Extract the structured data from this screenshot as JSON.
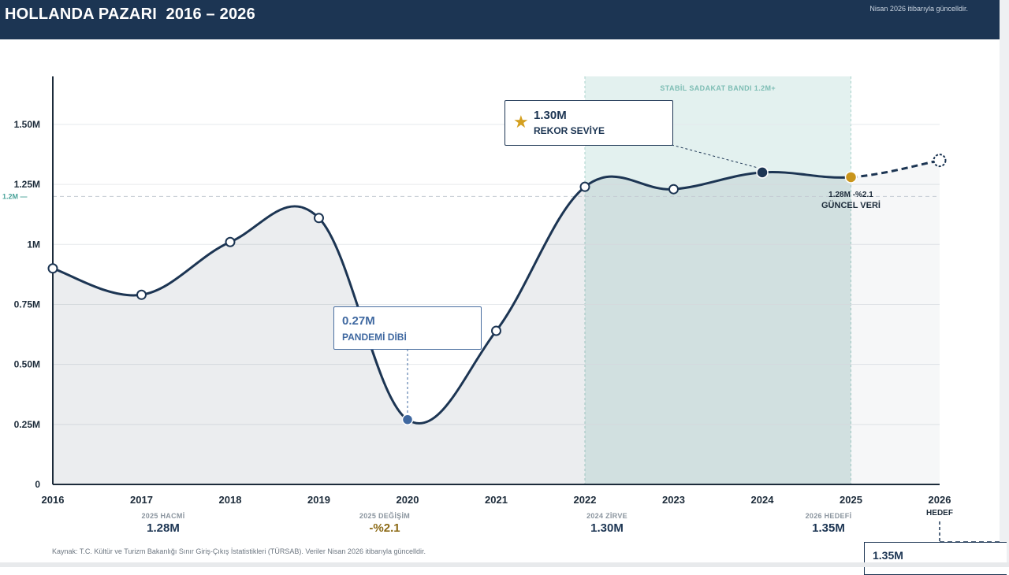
{
  "header": {
    "title": "HOLLANDA PAZARI  2016 – 2026",
    "note": "Nisan 2026 itibarıyla güncelldir."
  },
  "chart_data": {
    "type": "line",
    "title": "HOLLANDA PAZARI  2016 – 2026",
    "x": [
      "2016",
      "2017",
      "2018",
      "2019",
      "2020",
      "2021",
      "2022",
      "2023",
      "2024",
      "2025",
      "2026"
    ],
    "series": [
      {
        "values": [
          0.9,
          0.79,
          1.01,
          1.11,
          0.27,
          0.64,
          1.24,
          1.23,
          1.3,
          1.28,
          1.35
        ]
      }
    ],
    "y_unit": "M",
    "ylim": [
      0,
      1.7
    ],
    "ytick_labels": [
      {
        "value": 0,
        "label": "0"
      },
      {
        "value": 0.25,
        "label": "0.25M"
      },
      {
        "value": 0.5,
        "label": "0.50M"
      },
      {
        "value": 0.75,
        "label": "0.75M"
      },
      {
        "value": 1.0,
        "label": "1M"
      },
      {
        "value": 1.25,
        "label": "1.25M"
      },
      {
        "value": 1.5,
        "label": "1.50M"
      }
    ],
    "reference_line": {
      "value": 1.2,
      "label": "1.2M —"
    },
    "band": {
      "from": "2022",
      "to": "2025",
      "label": "STABİL SADAKAT BANDI  1.2M+"
    },
    "projection_from": "2025",
    "x_extra_label": {
      "x": "2026",
      "label": "HEDEF"
    },
    "grid": true,
    "annotations": {
      "record": {
        "x": "2024",
        "value": "1.30M",
        "label": "REKOR SEVİYE"
      },
      "pandemic": {
        "x": "2020",
        "value": "0.27M",
        "label": "PANDEMİ DİBİ"
      },
      "current": {
        "x": "2025",
        "value": "1.28M",
        "change": "-%2.1",
        "label": "GÜNCEL VERİ"
      }
    }
  },
  "stats": [
    {
      "label": "2025 HACMİ",
      "value": "1.28M"
    },
    {
      "label": "2025 DEĞİŞİM",
      "value": "-%2.1"
    },
    {
      "label": "2024 ZİRVE",
      "value": "1.30M"
    },
    {
      "label": "2026 HEDEFİ",
      "value": "1.35M"
    }
  ],
  "footer": {
    "source": "Kaynak: T.C. Kültür ve Turizm Bakanlığı Sınır Giriş-Çıkış İstatistikleri (TÜRSAB). Veriler Nisan 2026 itibarıyla güncelldir.",
    "target_value": "1.35M"
  },
  "colors": {
    "navy": "#1c3553",
    "gold": "#c9951c",
    "pandemic_blue": "#3f68a0",
    "band": "#e3f1ef"
  }
}
